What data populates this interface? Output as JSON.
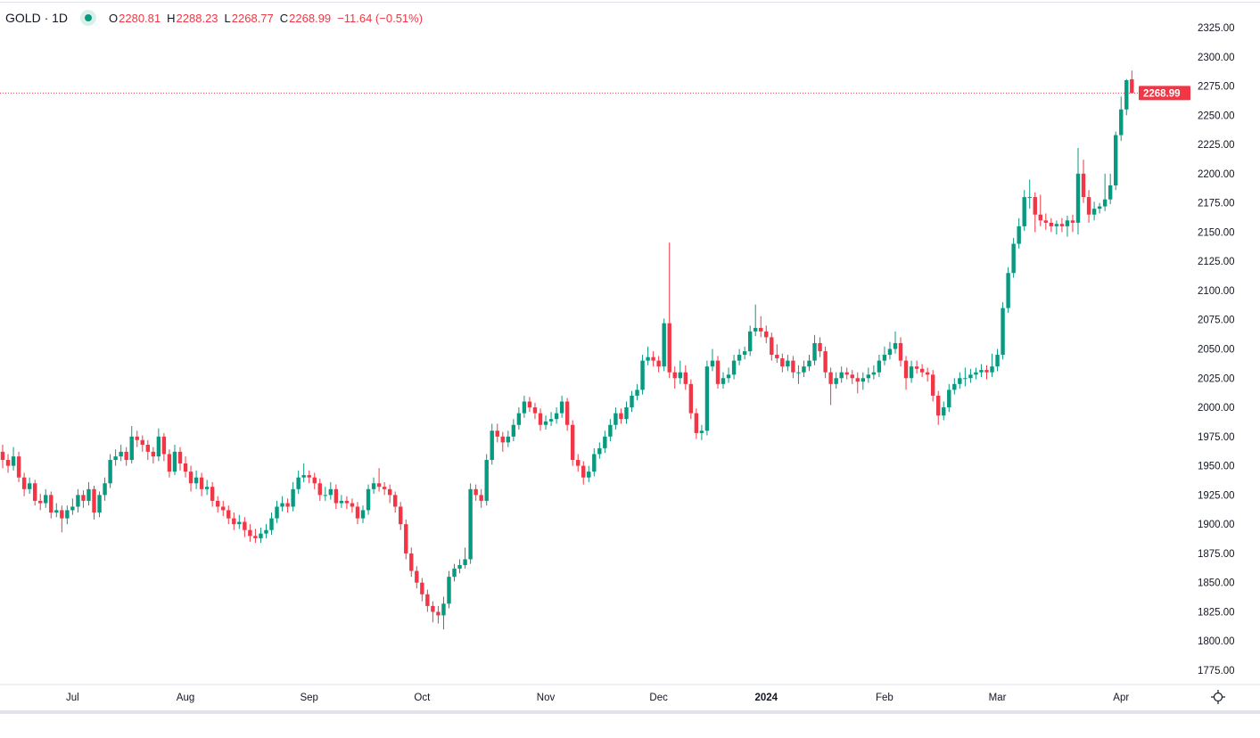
{
  "legend": {
    "symbol": "GOLD · 1D",
    "status_color": "#089981",
    "open_label": "O",
    "open": "2280.81",
    "high_label": "H",
    "high": "2288.23",
    "low_label": "L",
    "low": "2268.77",
    "close_label": "C",
    "close": "2268.99",
    "change": "−11.64 (−0.51%)"
  },
  "last_price_label": "2268.99",
  "colors": {
    "up": "#089981",
    "down": "#f23645",
    "price_line": "#f23645"
  },
  "settings_icon": "gear-icon",
  "chart_data": {
    "type": "candlestick",
    "symbol": "GOLD",
    "interval": "1D",
    "ylim": [
      1760,
      2335
    ],
    "yticks": [
      "1775.00",
      "1800.00",
      "1825.00",
      "1850.00",
      "1875.00",
      "1900.00",
      "1925.00",
      "1950.00",
      "1975.00",
      "2000.00",
      "2025.00",
      "2050.00",
      "2075.00",
      "2100.00",
      "2125.00",
      "2150.00",
      "2175.00",
      "2200.00",
      "2225.00",
      "2250.00",
      "2275.00",
      "2300.00",
      "2325.00"
    ],
    "xticks": [
      {
        "label": "Jul",
        "bar": 13,
        "bold": false
      },
      {
        "label": "Aug",
        "bar": 34,
        "bold": false
      },
      {
        "label": "Sep",
        "bar": 57,
        "bold": false
      },
      {
        "label": "Oct",
        "bar": 78,
        "bold": false
      },
      {
        "label": "Nov",
        "bar": 101,
        "bold": false
      },
      {
        "label": "Dec",
        "bar": 122,
        "bold": false
      },
      {
        "label": "2024",
        "bar": 142,
        "bold": true
      },
      {
        "label": "Feb",
        "bar": 164,
        "bold": false
      },
      {
        "label": "Mar",
        "bar": 185,
        "bold": false
      },
      {
        "label": "Apr",
        "bar": 208,
        "bold": false
      }
    ],
    "last_price": 2268.99,
    "candles_ohlc": [
      [
        1962,
        1968,
        1948,
        1955
      ],
      [
        1955,
        1960,
        1944,
        1950
      ],
      [
        1950,
        1966,
        1946,
        1958
      ],
      [
        1958,
        1962,
        1936,
        1940
      ],
      [
        1940,
        1944,
        1924,
        1930
      ],
      [
        1930,
        1940,
        1926,
        1935
      ],
      [
        1935,
        1938,
        1916,
        1920
      ],
      [
        1920,
        1926,
        1912,
        1918
      ],
      [
        1918,
        1930,
        1914,
        1925
      ],
      [
        1925,
        1928,
        1905,
        1910
      ],
      [
        1910,
        1918,
        1906,
        1912
      ],
      [
        1912,
        1916,
        1893,
        1905
      ],
      [
        1905,
        1916,
        1900,
        1912
      ],
      [
        1912,
        1922,
        1908,
        1915
      ],
      [
        1915,
        1930,
        1910,
        1925
      ],
      [
        1925,
        1929,
        1914,
        1920
      ],
      [
        1920,
        1936,
        1916,
        1930
      ],
      [
        1930,
        1933,
        1904,
        1910
      ],
      [
        1910,
        1928,
        1906,
        1925
      ],
      [
        1925,
        1940,
        1920,
        1935
      ],
      [
        1935,
        1960,
        1931,
        1955
      ],
      [
        1955,
        1964,
        1950,
        1958
      ],
      [
        1958,
        1968,
        1954,
        1962
      ],
      [
        1962,
        1966,
        1950,
        1955
      ],
      [
        1955,
        1984,
        1952,
        1975
      ],
      [
        1975,
        1980,
        1966,
        1972
      ],
      [
        1972,
        1976,
        1962,
        1968
      ],
      [
        1968,
        1972,
        1955,
        1962
      ],
      [
        1962,
        1966,
        1952,
        1958
      ],
      [
        1958,
        1982,
        1954,
        1975
      ],
      [
        1975,
        1978,
        1954,
        1960
      ],
      [
        1960,
        1964,
        1940,
        1945
      ],
      [
        1945,
        1968,
        1942,
        1962
      ],
      [
        1962,
        1966,
        1946,
        1952
      ],
      [
        1952,
        1958,
        1940,
        1945
      ],
      [
        1945,
        1950,
        1928,
        1935
      ],
      [
        1935,
        1946,
        1930,
        1940
      ],
      [
        1940,
        1944,
        1924,
        1930
      ],
      [
        1930,
        1938,
        1925,
        1932
      ],
      [
        1932,
        1936,
        1915,
        1920
      ],
      [
        1920,
        1924,
        1910,
        1915
      ],
      [
        1915,
        1920,
        1907,
        1912
      ],
      [
        1912,
        1916,
        1900,
        1905
      ],
      [
        1905,
        1910,
        1895,
        1900
      ],
      [
        1900,
        1908,
        1896,
        1902
      ],
      [
        1902,
        1906,
        1889,
        1895
      ],
      [
        1895,
        1900,
        1885,
        1890
      ],
      [
        1890,
        1896,
        1884,
        1888
      ],
      [
        1888,
        1897,
        1884,
        1892
      ],
      [
        1892,
        1900,
        1888,
        1895
      ],
      [
        1895,
        1910,
        1891,
        1905
      ],
      [
        1905,
        1920,
        1901,
        1915
      ],
      [
        1915,
        1924,
        1911,
        1918
      ],
      [
        1918,
        1922,
        1910,
        1915
      ],
      [
        1915,
        1936,
        1911,
        1930
      ],
      [
        1930,
        1946,
        1926,
        1940
      ],
      [
        1940,
        1952,
        1936,
        1942
      ],
      [
        1942,
        1946,
        1935,
        1940
      ],
      [
        1940,
        1944,
        1930,
        1935
      ],
      [
        1935,
        1939,
        1920,
        1925
      ],
      [
        1925,
        1932,
        1920,
        1925
      ],
      [
        1925,
        1936,
        1921,
        1930
      ],
      [
        1930,
        1934,
        1913,
        1918
      ],
      [
        1918,
        1925,
        1914,
        1920
      ],
      [
        1920,
        1924,
        1913,
        1918
      ],
      [
        1918,
        1922,
        1910,
        1915
      ],
      [
        1915,
        1919,
        1900,
        1905
      ],
      [
        1905,
        1916,
        1901,
        1912
      ],
      [
        1912,
        1934,
        1908,
        1930
      ],
      [
        1930,
        1940,
        1926,
        1935
      ],
      [
        1935,
        1948,
        1928,
        1932
      ],
      [
        1932,
        1936,
        1925,
        1930
      ],
      [
        1930,
        1934,
        1918,
        1925
      ],
      [
        1925,
        1928,
        1910,
        1915
      ],
      [
        1915,
        1919,
        1895,
        1900
      ],
      [
        1900,
        1904,
        1870,
        1875
      ],
      [
        1875,
        1880,
        1855,
        1860
      ],
      [
        1860,
        1864,
        1845,
        1850
      ],
      [
        1850,
        1854,
        1834,
        1840
      ],
      [
        1840,
        1844,
        1825,
        1830
      ],
      [
        1830,
        1834,
        1816,
        1825
      ],
      [
        1825,
        1830,
        1815,
        1822
      ],
      [
        1822,
        1838,
        1810,
        1832
      ],
      [
        1832,
        1860,
        1828,
        1855
      ],
      [
        1855,
        1866,
        1851,
        1862
      ],
      [
        1862,
        1870,
        1858,
        1865
      ],
      [
        1865,
        1880,
        1862,
        1870
      ],
      [
        1870,
        1935,
        1866,
        1930
      ],
      [
        1930,
        1934,
        1920,
        1925
      ],
      [
        1925,
        1930,
        1914,
        1920
      ],
      [
        1920,
        1960,
        1916,
        1955
      ],
      [
        1955,
        1986,
        1951,
        1980
      ],
      [
        1980,
        1986,
        1970,
        1975
      ],
      [
        1975,
        1979,
        1962,
        1970
      ],
      [
        1970,
        1980,
        1966,
        1975
      ],
      [
        1975,
        1990,
        1971,
        1985
      ],
      [
        1985,
        2000,
        1981,
        1995
      ],
      [
        1995,
        2010,
        1991,
        2005
      ],
      [
        2005,
        2009,
        1996,
        2000
      ],
      [
        2000,
        2004,
        1990,
        1995
      ],
      [
        1995,
        1999,
        1980,
        1985
      ],
      [
        1985,
        1993,
        1981,
        1988
      ],
      [
        1988,
        1996,
        1984,
        1990
      ],
      [
        1990,
        2000,
        1986,
        1995
      ],
      [
        1995,
        2010,
        1991,
        2005
      ],
      [
        2005,
        2008,
        1980,
        1985
      ],
      [
        1985,
        1989,
        1950,
        1955
      ],
      [
        1955,
        1960,
        1945,
        1950
      ],
      [
        1950,
        1954,
        1934,
        1940
      ],
      [
        1940,
        1950,
        1936,
        1945
      ],
      [
        1945,
        1965,
        1941,
        1960
      ],
      [
        1960,
        1970,
        1956,
        1965
      ],
      [
        1965,
        1980,
        1961,
        1975
      ],
      [
        1975,
        1990,
        1971,
        1985
      ],
      [
        1985,
        2000,
        1981,
        1995
      ],
      [
        1995,
        1999,
        1986,
        1990
      ],
      [
        1990,
        2005,
        1986,
        2000
      ],
      [
        2000,
        2014,
        1996,
        2010
      ],
      [
        2010,
        2020,
        2006,
        2015
      ],
      [
        2015,
        2045,
        2011,
        2040
      ],
      [
        2040,
        2052,
        2036,
        2043
      ],
      [
        2043,
        2048,
        2035,
        2040
      ],
      [
        2040,
        2044,
        2030,
        2035
      ],
      [
        2035,
        2076,
        2031,
        2072
      ],
      [
        2072,
        2141,
        2025,
        2030
      ],
      [
        2030,
        2035,
        2016,
        2025
      ],
      [
        2025,
        2040,
        2020,
        2030
      ],
      [
        2030,
        2036,
        2015,
        2020
      ],
      [
        2020,
        2024,
        1990,
        1995
      ],
      [
        1995,
        1999,
        1973,
        1978
      ],
      [
        1978,
        1985,
        1972,
        1980
      ],
      [
        1980,
        2040,
        1976,
        2035
      ],
      [
        2035,
        2050,
        2031,
        2040
      ],
      [
        2040,
        2044,
        2016,
        2020
      ],
      [
        2020,
        2030,
        2016,
        2025
      ],
      [
        2025,
        2034,
        2021,
        2028
      ],
      [
        2028,
        2045,
        2024,
        2040
      ],
      [
        2040,
        2050,
        2036,
        2045
      ],
      [
        2045,
        2052,
        2041,
        2048
      ],
      [
        2048,
        2070,
        2044,
        2065
      ],
      [
        2065,
        2088,
        2061,
        2068
      ],
      [
        2068,
        2078,
        2060,
        2065
      ],
      [
        2065,
        2070,
        2055,
        2060
      ],
      [
        2060,
        2064,
        2040,
        2045
      ],
      [
        2045,
        2054,
        2038,
        2042
      ],
      [
        2042,
        2046,
        2030,
        2035
      ],
      [
        2035,
        2045,
        2031,
        2040
      ],
      [
        2040,
        2044,
        2025,
        2030
      ],
      [
        2030,
        2036,
        2020,
        2030
      ],
      [
        2030,
        2040,
        2026,
        2035
      ],
      [
        2035,
        2045,
        2031,
        2040
      ],
      [
        2040,
        2062,
        2036,
        2055
      ],
      [
        2055,
        2060,
        2043,
        2048
      ],
      [
        2048,
        2052,
        2025,
        2030
      ],
      [
        2030,
        2034,
        2002,
        2020
      ],
      [
        2020,
        2030,
        2016,
        2025
      ],
      [
        2025,
        2035,
        2021,
        2030
      ],
      [
        2030,
        2034,
        2024,
        2028
      ],
      [
        2028,
        2032,
        2020,
        2025
      ],
      [
        2025,
        2030,
        2012,
        2022
      ],
      [
        2022,
        2030,
        2015,
        2025
      ],
      [
        2025,
        2034,
        2021,
        2028
      ],
      [
        2028,
        2036,
        2024,
        2030
      ],
      [
        2030,
        2045,
        2026,
        2040
      ],
      [
        2040,
        2052,
        2036,
        2045
      ],
      [
        2045,
        2056,
        2041,
        2050
      ],
      [
        2050,
        2065,
        2046,
        2055
      ],
      [
        2055,
        2060,
        2035,
        2040
      ],
      [
        2040,
        2044,
        2015,
        2025
      ],
      [
        2025,
        2040,
        2021,
        2035
      ],
      [
        2035,
        2040,
        2029,
        2033
      ],
      [
        2033,
        2037,
        2026,
        2030
      ],
      [
        2030,
        2034,
        2022,
        2028
      ],
      [
        2028,
        2032,
        2005,
        2010
      ],
      [
        2010,
        2014,
        1985,
        1993
      ],
      [
        1993,
        2005,
        1989,
        2000
      ],
      [
        2000,
        2020,
        1996,
        2015
      ],
      [
        2015,
        2025,
        2011,
        2020
      ],
      [
        2020,
        2030,
        2016,
        2025
      ],
      [
        2025,
        2034,
        2018,
        2025
      ],
      [
        2025,
        2033,
        2021,
        2028
      ],
      [
        2028,
        2034,
        2024,
        2030
      ],
      [
        2030,
        2037,
        2026,
        2032
      ],
      [
        2032,
        2036,
        2024,
        2030
      ],
      [
        2030,
        2046,
        2026,
        2035
      ],
      [
        2035,
        2050,
        2031,
        2045
      ],
      [
        2045,
        2090,
        2041,
        2085
      ],
      [
        2085,
        2120,
        2081,
        2115
      ],
      [
        2115,
        2145,
        2111,
        2140
      ],
      [
        2140,
        2162,
        2136,
        2155
      ],
      [
        2155,
        2186,
        2151,
        2180
      ],
      [
        2180,
        2195,
        2170,
        2180
      ],
      [
        2180,
        2184,
        2150,
        2165
      ],
      [
        2165,
        2182,
        2155,
        2160
      ],
      [
        2160,
        2166,
        2152,
        2158
      ],
      [
        2158,
        2162,
        2150,
        2155
      ],
      [
        2155,
        2160,
        2148,
        2157
      ],
      [
        2157,
        2162,
        2150,
        2155
      ],
      [
        2155,
        2164,
        2146,
        2160
      ],
      [
        2160,
        2165,
        2150,
        2158
      ],
      [
        2158,
        2222,
        2148,
        2200
      ],
      [
        2200,
        2212,
        2175,
        2180
      ],
      [
        2180,
        2186,
        2158,
        2165
      ],
      [
        2165,
        2176,
        2160,
        2170
      ],
      [
        2170,
        2175,
        2166,
        2172
      ],
      [
        2172,
        2200,
        2168,
        2178
      ],
      [
        2178,
        2200,
        2174,
        2190
      ],
      [
        2190,
        2236,
        2186,
        2233
      ],
      [
        2233,
        2266,
        2228,
        2255
      ],
      [
        2255,
        2281,
        2250,
        2280
      ],
      [
        2280.81,
        2288.23,
        2268.77,
        2268.99
      ]
    ]
  }
}
